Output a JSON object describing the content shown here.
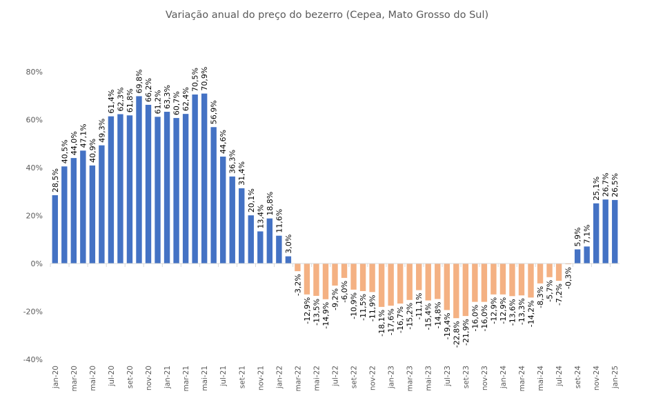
{
  "chart_data": {
    "type": "bar",
    "title": "Variação anual do preço do bezerro (Cepea, Mato Grosso do Sul)",
    "xlabel": "",
    "ylabel": "",
    "ylim": [
      -40,
      80
    ],
    "y_ticks": [
      "80%",
      "60%",
      "40%",
      "20%",
      "0%",
      "-20%",
      "-40%"
    ],
    "y_tick_values": [
      80,
      60,
      40,
      20,
      0,
      -20,
      -40
    ],
    "grid": false,
    "legend": "none",
    "colors": {
      "positive": "#4472C4",
      "negative": "#F4B183",
      "axis": "#D9D9D9",
      "text": "#595959"
    },
    "categories": [
      "jan-20",
      "fev-20",
      "mar-20",
      "abr-20",
      "mai-20",
      "jun-20",
      "jul-20",
      "ago-20",
      "set-20",
      "out-20",
      "nov-20",
      "dez-20",
      "jan-21",
      "fev-21",
      "mar-21",
      "abr-21",
      "mai-21",
      "jun-21",
      "jul-21",
      "ago-21",
      "set-21",
      "out-21",
      "nov-21",
      "dez-21",
      "jan-22",
      "fev-22",
      "mar-22",
      "abr-22",
      "mai-22",
      "jun-22",
      "jul-22",
      "ago-22",
      "set-22",
      "out-22",
      "nov-22",
      "dez-22",
      "jan-23",
      "fev-23",
      "mar-23",
      "abr-23",
      "mai-23",
      "jun-23",
      "jul-23",
      "ago-23",
      "set-23",
      "out-23",
      "nov-23",
      "dez-23",
      "jan-24",
      "fev-24",
      "mar-24",
      "abr-24",
      "mai-24",
      "jun-24",
      "jul-24",
      "ago-24",
      "set-24",
      "out-24",
      "nov-24",
      "dez-24",
      "jan-25"
    ],
    "x_tick_labels": [
      "jan-20",
      "mar-20",
      "mai-20",
      "jul-20",
      "set-20",
      "nov-20",
      "jan-21",
      "mar-21",
      "mai-21",
      "jul-21",
      "set-21",
      "nov-21",
      "jan-22",
      "mar-22",
      "mai-22",
      "jul-22",
      "set-22",
      "nov-22",
      "jan-23",
      "mar-23",
      "mai-23",
      "jul-23",
      "set-23",
      "nov-23",
      "jan-24",
      "mar-24",
      "mai-24",
      "jul-24",
      "set-24",
      "nov-24",
      "jan-25"
    ],
    "values": [
      28.5,
      40.5,
      44.0,
      47.1,
      40.9,
      49.3,
      61.4,
      62.3,
      61.8,
      69.8,
      66.2,
      61.2,
      63.3,
      60.7,
      62.4,
      70.5,
      70.9,
      56.9,
      44.6,
      36.3,
      31.4,
      20.1,
      13.4,
      18.8,
      11.6,
      3.0,
      -3.2,
      -12.9,
      -13.5,
      -14.9,
      -9.2,
      -6.0,
      -10.9,
      -11.5,
      -11.9,
      -18.1,
      -17.6,
      -16.7,
      -15.2,
      -11.1,
      -15.4,
      -14.8,
      -19.4,
      -22.8,
      -21.9,
      -16.0,
      -16.0,
      -12.9,
      -12.9,
      -13.6,
      -13.3,
      -14.2,
      -8.3,
      -5.7,
      -7.2,
      -0.3,
      5.9,
      7.1,
      25.1,
      26.7,
      26.5
    ],
    "data_labels": [
      "28,5%",
      "40,5%",
      "44,0%",
      "47,1%",
      "40,9%",
      "49,3%",
      "61,4%",
      "62,3%",
      "61,8%",
      "69,8%",
      "66,2%",
      "61,2%",
      "63,3%",
      "60,7%",
      "62,4%",
      "70,5%",
      "70,9%",
      "56,9%",
      "44,6%",
      "36,3%",
      "31,4%",
      "20,1%",
      "13,4%",
      "18,8%",
      "11,6%",
      "3,0%",
      "-3,2%",
      "-12,9%",
      "-13,5%",
      "-14,9%",
      "-9,2%",
      "-6,0%",
      "-10,9%",
      "-11,5%",
      "-11,9%",
      "-18,1%",
      "-17,6%",
      "-16,7%",
      "-15,2%",
      "-11,1%",
      "-15,4%",
      "-14,8%",
      "-19,4%",
      "-22,8%",
      "-21,9%",
      "-16,0%",
      "-16,0%",
      "-12,9%",
      "-12,9%",
      "-13,6%",
      "-13,3%",
      "-14,2%",
      "-8,3%",
      "-5,7%",
      "-7,2%",
      "-0,3%",
      "5,9%",
      "7,1%",
      "25,1%",
      "26,7%",
      "26,5%"
    ]
  }
}
